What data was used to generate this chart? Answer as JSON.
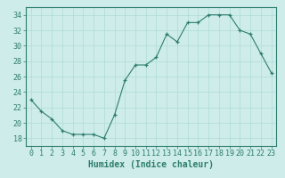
{
  "x": [
    0,
    1,
    2,
    3,
    4,
    5,
    6,
    7,
    8,
    9,
    10,
    11,
    12,
    13,
    14,
    15,
    16,
    17,
    18,
    19,
    20,
    21,
    22,
    23
  ],
  "y": [
    23,
    21.5,
    20.5,
    19,
    18.5,
    18.5,
    18.5,
    18,
    21,
    25.5,
    27.5,
    27.5,
    28.5,
    31.5,
    30.5,
    33,
    33,
    34,
    34,
    34,
    32,
    31.5,
    29,
    26.5
  ],
  "xlabel": "Humidex (Indice chaleur)",
  "xlim": [
    -0.5,
    23.5
  ],
  "ylim": [
    17,
    35
  ],
  "yticks": [
    18,
    20,
    22,
    24,
    26,
    28,
    30,
    32,
    34
  ],
  "xticks": [
    0,
    1,
    2,
    3,
    4,
    5,
    6,
    7,
    8,
    9,
    10,
    11,
    12,
    13,
    14,
    15,
    16,
    17,
    18,
    19,
    20,
    21,
    22,
    23
  ],
  "line_color": "#2e7d6e",
  "marker": "+",
  "bg_color": "#cdecea",
  "grid_color": "#b0dbd8",
  "axis_color": "#2e7d6e",
  "tick_label_color": "#2e7d6e",
  "xlabel_color": "#2e7d6e",
  "xlabel_fontsize": 7,
  "tick_fontsize": 6
}
